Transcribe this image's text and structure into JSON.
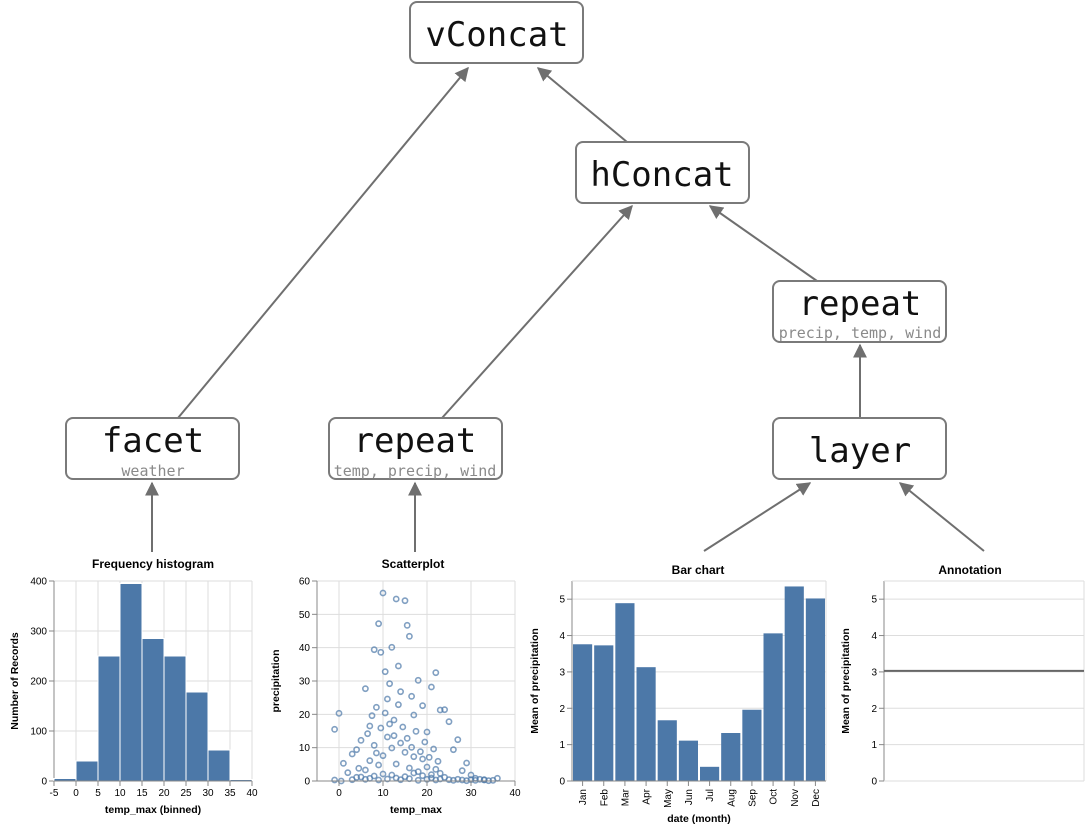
{
  "colors": {
    "mark": "#4c78a8",
    "rule": "#666666",
    "edge": "#6f6f6f"
  },
  "diagram": {
    "nodes": [
      {
        "id": "vconcat",
        "title": "vConcat",
        "subtitle": ""
      },
      {
        "id": "hconcat",
        "title": "hConcat",
        "subtitle": ""
      },
      {
        "id": "repeat-top",
        "title": "repeat",
        "subtitle": "precip, temp, wind"
      },
      {
        "id": "facet",
        "title": "facet",
        "subtitle": "weather"
      },
      {
        "id": "repeat-left",
        "title": "repeat",
        "subtitle": "temp, precip, wind"
      },
      {
        "id": "layer",
        "title": "layer",
        "subtitle": ""
      }
    ],
    "edges": [
      {
        "from": "facet",
        "to": "vconcat"
      },
      {
        "from": "hconcat",
        "to": "vconcat"
      },
      {
        "from": "repeat-left",
        "to": "hconcat"
      },
      {
        "from": "repeat-top",
        "to": "hconcat"
      },
      {
        "from": "layer",
        "to": "repeat-top"
      },
      {
        "from": "histogram",
        "to": "facet"
      },
      {
        "from": "scatter",
        "to": "repeat-left"
      },
      {
        "from": "barchart",
        "to": "layer"
      },
      {
        "from": "annotation",
        "to": "layer"
      }
    ]
  },
  "chart_data": [
    {
      "id": "histogram",
      "type": "bar",
      "title": "Frequency histogram",
      "xlabel": "temp_max (binned)",
      "ylabel": "Number of Records",
      "x_ticks": [
        "-5",
        "0",
        "5",
        "10",
        "15",
        "20",
        "25",
        "30",
        "35",
        "40"
      ],
      "bins": [
        {
          "start": -5,
          "end": 0,
          "value": 5
        },
        {
          "start": 0,
          "end": 5,
          "value": 40
        },
        {
          "start": 5,
          "end": 10,
          "value": 250
        },
        {
          "start": 10,
          "end": 15,
          "value": 395
        },
        {
          "start": 15,
          "end": 20,
          "value": 285
        },
        {
          "start": 20,
          "end": 25,
          "value": 250
        },
        {
          "start": 25,
          "end": 30,
          "value": 178
        },
        {
          "start": 30,
          "end": 35,
          "value": 62
        },
        {
          "start": 35,
          "end": 40,
          "value": 3
        }
      ],
      "xlim": [
        -5,
        40
      ],
      "ylim": [
        0,
        400
      ],
      "y_ticks": [
        0,
        100,
        200,
        300,
        400
      ],
      "grid": true
    },
    {
      "id": "scatter",
      "type": "scatter",
      "title": "Scatterplot",
      "xlabel": "temp_max",
      "ylabel": "precipitation",
      "xlim": [
        -5,
        40
      ],
      "ylim": [
        0,
        60
      ],
      "x_ticks": [
        0,
        10,
        20,
        30,
        40
      ],
      "y_ticks": [
        0,
        10,
        20,
        30,
        40,
        50,
        60
      ],
      "grid": true,
      "points": [
        [
          -1,
          15.5
        ],
        [
          0,
          20.3
        ],
        [
          -1,
          0.3
        ],
        [
          0.5,
          0
        ],
        [
          1,
          5.3
        ],
        [
          2,
          2.5
        ],
        [
          3,
          8.1
        ],
        [
          4,
          9.4
        ],
        [
          5,
          12.2
        ],
        [
          6,
          27.7
        ],
        [
          7,
          16.5
        ],
        [
          8,
          39.4
        ],
        [
          8.5,
          22.1
        ],
        [
          9,
          47.2
        ],
        [
          9.5,
          38.6
        ],
        [
          10,
          56.4
        ],
        [
          10.5,
          32.8
        ],
        [
          11,
          24.6
        ],
        [
          11.5,
          29.2
        ],
        [
          12,
          40.1
        ],
        [
          12.5,
          18.3
        ],
        [
          13,
          54.6
        ],
        [
          13.5,
          34.5
        ],
        [
          14,
          26.8
        ],
        [
          15,
          54.1
        ],
        [
          15.5,
          46.7
        ],
        [
          16,
          43.4
        ],
        [
          16.5,
          25.4
        ],
        [
          17,
          19.8
        ],
        [
          18,
          30.2
        ],
        [
          19,
          22.6
        ],
        [
          20,
          14.7
        ],
        [
          21,
          28.2
        ],
        [
          22,
          32.5
        ],
        [
          23,
          21.3
        ],
        [
          24,
          21.4
        ],
        [
          25,
          17.8
        ],
        [
          26,
          9.4
        ],
        [
          27,
          12.4
        ],
        [
          28,
          3.1
        ],
        [
          29,
          5.4
        ],
        [
          30,
          1.8
        ],
        [
          31,
          0.8
        ],
        [
          32,
          0.5
        ],
        [
          33,
          0.3
        ],
        [
          35,
          0.2
        ],
        [
          36,
          0.8
        ],
        [
          6,
          3.3
        ],
        [
          7,
          6.1
        ],
        [
          8,
          10.7
        ],
        [
          9,
          4.8
        ],
        [
          10,
          7.6
        ],
        [
          11,
          13.2
        ],
        [
          12,
          9.9
        ],
        [
          13,
          5.1
        ],
        [
          14,
          11.4
        ],
        [
          15,
          8.6
        ],
        [
          16,
          3.9
        ],
        [
          17,
          7.3
        ],
        [
          18,
          2.8
        ],
        [
          19,
          6.6
        ],
        [
          20,
          4.2
        ],
        [
          21,
          1.9
        ],
        [
          22,
          3.5
        ],
        [
          23,
          2.3
        ],
        [
          24,
          1.1
        ],
        [
          5,
          1.2
        ],
        [
          6,
          0.5
        ],
        [
          7,
          0.8
        ],
        [
          8,
          1.5
        ],
        [
          9,
          0.3
        ],
        [
          10,
          2.1
        ],
        [
          11,
          0.6
        ],
        [
          12,
          1.8
        ],
        [
          13,
          0.9
        ],
        [
          14,
          0.4
        ],
        [
          15,
          1.3
        ],
        [
          16,
          0.7
        ],
        [
          17,
          2.4
        ],
        [
          18,
          0.2
        ],
        [
          19,
          1.6
        ],
        [
          20,
          0.5
        ],
        [
          21,
          0.9
        ],
        [
          22,
          0.3
        ],
        [
          23,
          0.6
        ],
        [
          25,
          0.4
        ],
        [
          26,
          0.2
        ],
        [
          27,
          0.5
        ],
        [
          28,
          0.3
        ],
        [
          29,
          0.1
        ],
        [
          30,
          0.4
        ],
        [
          31,
          0.2
        ],
        [
          33,
          0.4
        ],
        [
          34,
          0.1
        ],
        [
          3,
          0.4
        ],
        [
          4,
          1.1
        ],
        [
          4.5,
          3.8
        ],
        [
          6.5,
          14.2
        ],
        [
          7.5,
          19.6
        ],
        [
          8.5,
          8.4
        ],
        [
          9.5,
          15.9
        ],
        [
          10.5,
          20.4
        ],
        [
          11.5,
          17.1
        ],
        [
          12.5,
          13.6
        ],
        [
          13.5,
          22.9
        ],
        [
          14.5,
          16.2
        ],
        [
          15.5,
          12.8
        ],
        [
          16.5,
          10.1
        ],
        [
          17.5,
          14.9
        ],
        [
          18.5,
          8.8
        ],
        [
          19.5,
          11.7
        ],
        [
          20.5,
          7.1
        ],
        [
          21.5,
          9.6
        ],
        [
          22.5,
          5.9
        ]
      ]
    },
    {
      "id": "barchart",
      "type": "bar",
      "title": "Bar chart",
      "xlabel": "date (month)",
      "ylabel": "Mean of precipitation",
      "categories": [
        "Jan",
        "Feb",
        "Mar",
        "Apr",
        "May",
        "Jun",
        "Jul",
        "Aug",
        "Sep",
        "Oct",
        "Nov",
        "Dec"
      ],
      "values": [
        3.76,
        3.73,
        4.89,
        3.13,
        1.67,
        1.11,
        0.39,
        1.32,
        1.96,
        4.06,
        5.35,
        5.02
      ],
      "ylim": [
        0,
        5.5
      ],
      "y_ticks": [
        0,
        1,
        2,
        3,
        4,
        5
      ],
      "grid": true
    },
    {
      "id": "annotation",
      "type": "line",
      "title": "Annotation",
      "ylabel": "Mean of precipitation",
      "rule_value": 3.03,
      "ylim": [
        0,
        5.5
      ],
      "y_ticks": [
        0,
        1,
        2,
        3,
        4,
        5
      ],
      "grid": true
    }
  ]
}
